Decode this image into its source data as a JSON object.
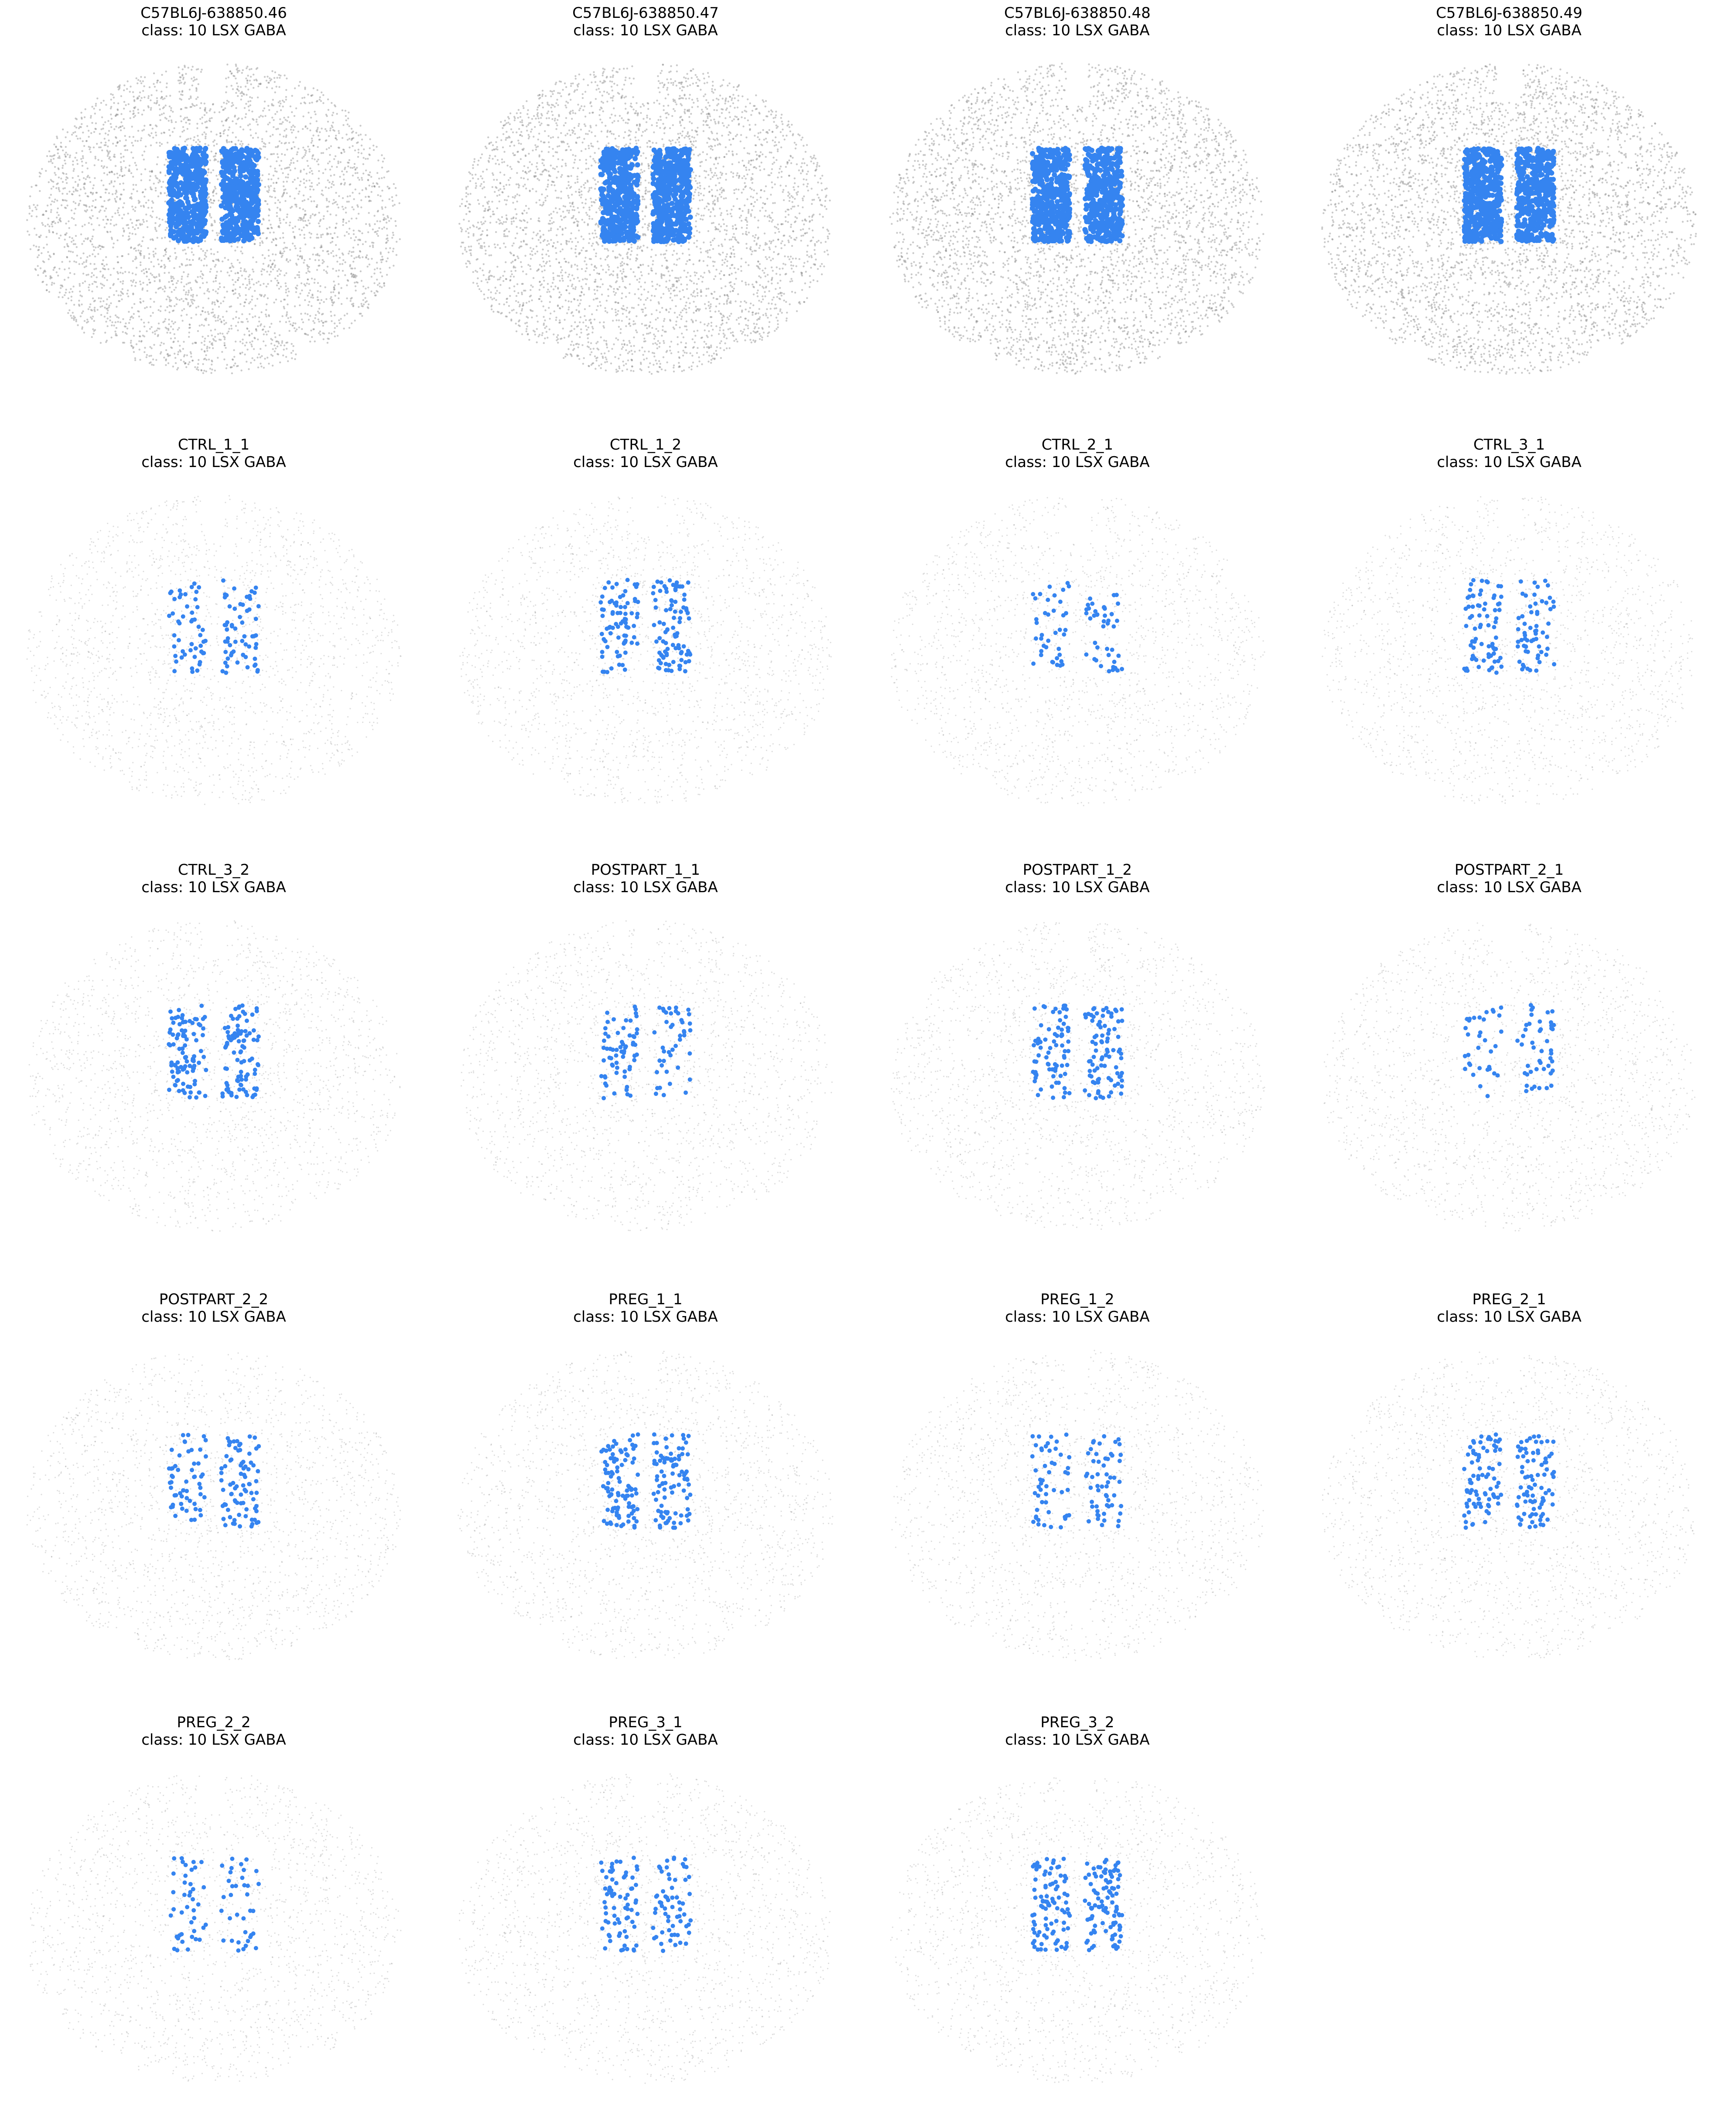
{
  "figure": {
    "highlight_color": "#3584f0",
    "background_cell_color": "#8a8a8a",
    "axes_visible": false,
    "grid": "4 columns x 5 rows"
  },
  "chart_data": [
    {
      "type": "scatter",
      "section": "C57BL6J-638850.46",
      "title_line1": "C57BL6J-638850.46",
      "title_line2": "class: 10 LSX GABA",
      "style": "dense"
    },
    {
      "type": "scatter",
      "section": "C57BL6J-638850.47",
      "title_line1": "C57BL6J-638850.47",
      "title_line2": "class: 10 LSX GABA",
      "style": "dense"
    },
    {
      "type": "scatter",
      "section": "C57BL6J-638850.48",
      "title_line1": "C57BL6J-638850.48",
      "title_line2": "class: 10 LSX GABA",
      "style": "dense"
    },
    {
      "type": "scatter",
      "section": "C57BL6J-638850.49",
      "title_line1": "C57BL6J-638850.49",
      "title_line2": "class: 10 LSX GABA",
      "style": "dense"
    },
    {
      "type": "scatter",
      "section": "CTRL_1_1",
      "title_line1": "CTRL_1_1",
      "title_line2": "class: 10 LSX GABA",
      "style": "sparse"
    },
    {
      "type": "scatter",
      "section": "CTRL_1_2",
      "title_line1": "CTRL_1_2",
      "title_line2": "class: 10 LSX GABA",
      "style": "sparse"
    },
    {
      "type": "scatter",
      "section": "CTRL_2_1",
      "title_line1": "CTRL_2_1",
      "title_line2": "class: 10 LSX GABA",
      "style": "sparse"
    },
    {
      "type": "scatter",
      "section": "CTRL_3_1",
      "title_line1": "CTRL_3_1",
      "title_line2": "class: 10 LSX GABA",
      "style": "sparse"
    },
    {
      "type": "scatter",
      "section": "CTRL_3_2",
      "title_line1": "CTRL_3_2",
      "title_line2": "class: 10 LSX GABA",
      "style": "sparse"
    },
    {
      "type": "scatter",
      "section": "POSTPART_1_1",
      "title_line1": "POSTPART_1_1",
      "title_line2": "class: 10 LSX GABA",
      "style": "sparse"
    },
    {
      "type": "scatter",
      "section": "POSTPART_1_2",
      "title_line1": "POSTPART_1_2",
      "title_line2": "class: 10 LSX GABA",
      "style": "sparse"
    },
    {
      "type": "scatter",
      "section": "POSTPART_2_1",
      "title_line1": "POSTPART_2_1",
      "title_line2": "class: 10 LSX GABA",
      "style": "sparse"
    },
    {
      "type": "scatter",
      "section": "POSTPART_2_2",
      "title_line1": "POSTPART_2_2",
      "title_line2": "class: 10 LSX GABA",
      "style": "sparse"
    },
    {
      "type": "scatter",
      "section": "PREG_1_1",
      "title_line1": "PREG_1_1",
      "title_line2": "class: 10 LSX GABA",
      "style": "sparse"
    },
    {
      "type": "scatter",
      "section": "PREG_1_2",
      "title_line1": "PREG_1_2",
      "title_line2": "class: 10 LSX GABA",
      "style": "sparse"
    },
    {
      "type": "scatter",
      "section": "PREG_2_1",
      "title_line1": "PREG_2_1",
      "title_line2": "class: 10 LSX GABA",
      "style": "sparse"
    },
    {
      "type": "scatter",
      "section": "PREG_2_2",
      "title_line1": "PREG_2_2",
      "title_line2": "class: 10 LSX GABA",
      "style": "sparse"
    },
    {
      "type": "scatter",
      "section": "PREG_3_1",
      "title_line1": "PREG_3_1",
      "title_line2": "class: 10 LSX GABA",
      "style": "sparse"
    },
    {
      "type": "scatter",
      "section": "PREG_3_2",
      "title_line1": "PREG_3_2",
      "title_line2": "class: 10 LSX GABA",
      "style": "sparse"
    }
  ]
}
